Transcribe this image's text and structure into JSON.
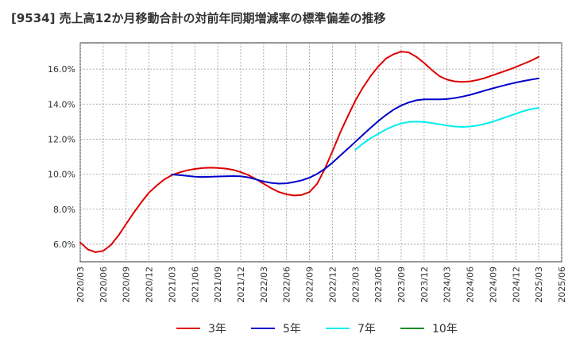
{
  "chart_data": {
    "type": "line",
    "title": "[9534]  売上高12か月移動合計の対前年同期増減率の標準偏差の推移",
    "xlabel": "",
    "ylabel": "",
    "ylim": [
      5.0,
      17.5
    ],
    "yticks": [
      "6.0%",
      "8.0%",
      "10.0%",
      "12.0%",
      "14.0%",
      "16.0%"
    ],
    "ytick_values": [
      6,
      8,
      10,
      12,
      14,
      16
    ],
    "xticks": [
      "2020/03",
      "2020/06",
      "2020/09",
      "2020/12",
      "2021/03",
      "2021/06",
      "2021/09",
      "2021/12",
      "2022/03",
      "2022/06",
      "2022/09",
      "2022/12",
      "2023/03",
      "2023/06",
      "2023/09",
      "2023/12",
      "2024/03",
      "2024/06",
      "2024/09",
      "2024/12",
      "2025/03",
      "2025/06"
    ],
    "grid": true,
    "legend_position": "bottom",
    "series": [
      {
        "name": "3年",
        "color": "#dd0000",
        "x": [
          "2020/03",
          "2020/04",
          "2020/05",
          "2020/06",
          "2020/07",
          "2020/08",
          "2020/09",
          "2020/10",
          "2020/11",
          "2020/12",
          "2021/01",
          "2021/02",
          "2021/03",
          "2021/04",
          "2021/05",
          "2021/06",
          "2021/07",
          "2021/08",
          "2021/09",
          "2021/10",
          "2021/11",
          "2021/12",
          "2022/01",
          "2022/02",
          "2022/03",
          "2022/04",
          "2022/05",
          "2022/06",
          "2022/07",
          "2022/08",
          "2022/09",
          "2022/10",
          "2022/11",
          "2022/12",
          "2023/01",
          "2023/02",
          "2023/03",
          "2023/04",
          "2023/05",
          "2023/06",
          "2023/07",
          "2023/08",
          "2023/09",
          "2023/10",
          "2023/11",
          "2023/12",
          "2024/01",
          "2024/02",
          "2024/03",
          "2024/04",
          "2024/05",
          "2024/06",
          "2024/07",
          "2024/08",
          "2024/09",
          "2024/10",
          "2024/11",
          "2024/12",
          "2025/01",
          "2025/02",
          "2025/03"
        ],
        "values": [
          6.1,
          5.7,
          5.55,
          5.62,
          5.95,
          6.5,
          7.15,
          7.8,
          8.4,
          8.95,
          9.35,
          9.7,
          9.95,
          10.1,
          10.22,
          10.3,
          10.35,
          10.37,
          10.36,
          10.32,
          10.25,
          10.12,
          9.95,
          9.72,
          9.45,
          9.2,
          8.98,
          8.85,
          8.78,
          8.82,
          8.98,
          9.45,
          10.3,
          11.3,
          12.35,
          13.3,
          14.2,
          14.95,
          15.6,
          16.15,
          16.6,
          16.85,
          17.0,
          16.95,
          16.7,
          16.35,
          15.95,
          15.6,
          15.4,
          15.3,
          15.27,
          15.3,
          15.38,
          15.5,
          15.65,
          15.8,
          15.95,
          16.12,
          16.3,
          16.48,
          16.7
        ]
      },
      {
        "name": "5年",
        "color": "#0000cc",
        "x": [
          "2021/03",
          "2021/04",
          "2021/05",
          "2021/06",
          "2021/07",
          "2021/08",
          "2021/09",
          "2021/10",
          "2021/11",
          "2021/12",
          "2022/01",
          "2022/02",
          "2022/03",
          "2022/04",
          "2022/05",
          "2022/06",
          "2022/07",
          "2022/08",
          "2022/09",
          "2022/10",
          "2022/11",
          "2022/12",
          "2023/01",
          "2023/02",
          "2023/03",
          "2023/04",
          "2023/05",
          "2023/06",
          "2023/07",
          "2023/08",
          "2023/09",
          "2023/10",
          "2023/11",
          "2023/12",
          "2024/01",
          "2024/02",
          "2024/03",
          "2024/04",
          "2024/05",
          "2024/06",
          "2024/07",
          "2024/08",
          "2024/09",
          "2024/10",
          "2024/11",
          "2024/12",
          "2025/01",
          "2025/02",
          "2025/03"
        ],
        "values": [
          9.98,
          9.95,
          9.9,
          9.86,
          9.84,
          9.85,
          9.87,
          9.88,
          9.89,
          9.88,
          9.82,
          9.7,
          9.58,
          9.5,
          9.46,
          9.48,
          9.55,
          9.65,
          9.8,
          10.02,
          10.3,
          10.65,
          11.05,
          11.45,
          11.85,
          12.25,
          12.65,
          13.03,
          13.38,
          13.68,
          13.92,
          14.1,
          14.22,
          14.27,
          14.27,
          14.27,
          14.29,
          14.35,
          14.43,
          14.53,
          14.65,
          14.78,
          14.9,
          15.02,
          15.13,
          15.23,
          15.32,
          15.4,
          15.47
        ]
      },
      {
        "name": "7年",
        "color": "#00eeee",
        "x": [
          "2023/03",
          "2023/04",
          "2023/05",
          "2023/06",
          "2023/07",
          "2023/08",
          "2023/09",
          "2023/10",
          "2023/11",
          "2023/12",
          "2024/01",
          "2024/02",
          "2024/03",
          "2024/04",
          "2024/05",
          "2024/06",
          "2024/07",
          "2024/08",
          "2024/09",
          "2024/10",
          "2024/11",
          "2024/12",
          "2025/01",
          "2025/02",
          "2025/03"
        ],
        "values": [
          11.4,
          11.75,
          12.05,
          12.3,
          12.55,
          12.75,
          12.9,
          12.98,
          13.0,
          12.98,
          12.92,
          12.85,
          12.78,
          12.72,
          12.7,
          12.72,
          12.78,
          12.88,
          13.0,
          13.15,
          13.3,
          13.45,
          13.6,
          13.72,
          13.78
        ]
      },
      {
        "name": "10年",
        "color": "#228822",
        "x": [],
        "values": []
      }
    ]
  }
}
